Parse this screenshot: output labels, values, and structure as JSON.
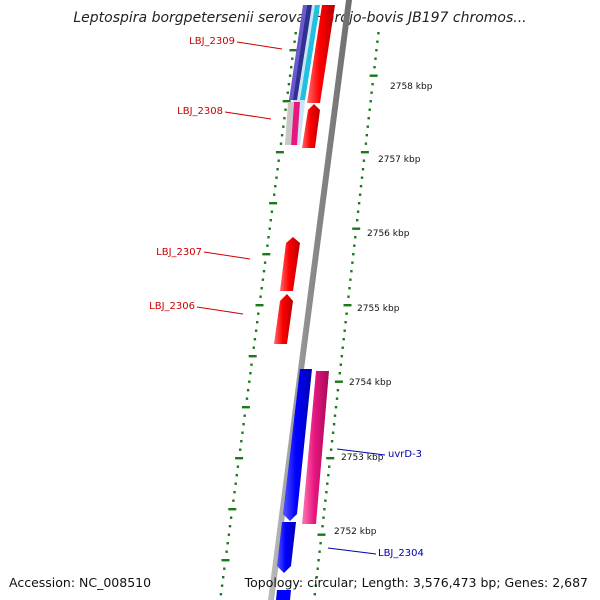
{
  "title": "Leptospira borgpetersenii serovar Hardjo-bovis JB197 chromos...",
  "footer": {
    "accession": "Accession: NC_008510",
    "summary": "Topology: circular; Length: 3,576,473 bp; Genes: 2,687"
  },
  "ticks": [
    "2758 kbp",
    "2757 kbp",
    "2756 kbp",
    "2755 kbp",
    "2754 kbp",
    "2753 kbp",
    "2752 kbp"
  ],
  "gene_labels": [
    {
      "name": "LBJ_2309",
      "color": "#cc0000"
    },
    {
      "name": "LBJ_2308",
      "color": "#cc0000"
    },
    {
      "name": "LBJ_2307",
      "color": "#cc0000"
    },
    {
      "name": "LBJ_2306",
      "color": "#cc0000"
    },
    {
      "name": "uvrD-3",
      "color": "#0000aa"
    },
    {
      "name": "LBJ_2304",
      "color": "#0000aa"
    }
  ],
  "colors": {
    "backbone": "#8a8a8a",
    "forward_gene": "#ff0000",
    "reverse_gene": "#0000ff",
    "feature_pink": "#e8167f",
    "gc_skew_dots": "#1a7a1a"
  }
}
